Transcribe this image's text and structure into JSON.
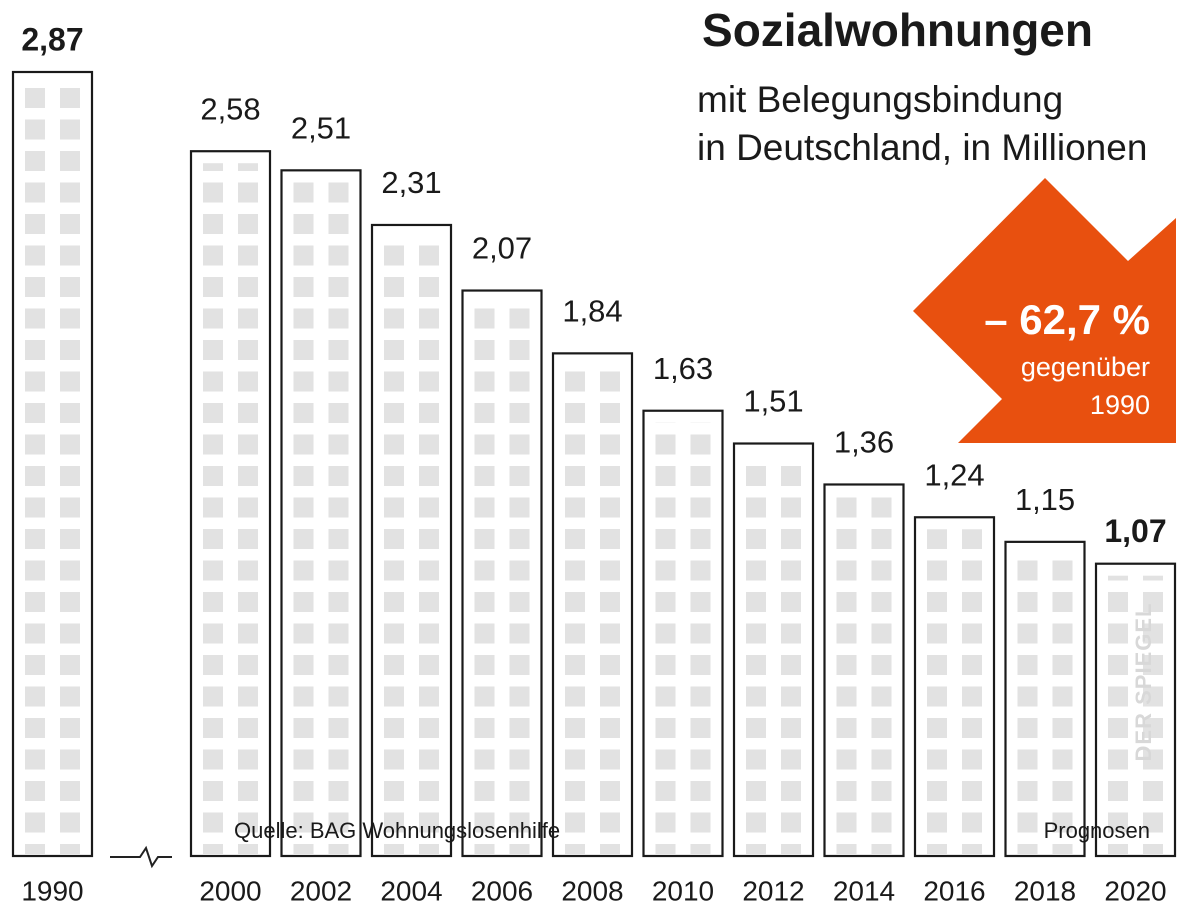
{
  "chart_data": {
    "type": "bar",
    "title": "Sozialwohnungen",
    "subtitle": [
      "mit Belegungsbindung",
      "in Deutschland, in Millionen"
    ],
    "categories": [
      "1990",
      "2000",
      "2002",
      "2004",
      "2006",
      "2008",
      "2010",
      "2012",
      "2014",
      "2016",
      "2018",
      "2020"
    ],
    "values": [
      2.87,
      2.58,
      2.51,
      2.31,
      2.07,
      1.84,
      1.63,
      1.51,
      1.36,
      1.24,
      1.15,
      1.07
    ],
    "value_labels": [
      "2,87",
      "2,58",
      "2,51",
      "2,31",
      "2,07",
      "1,84",
      "1,63",
      "1,51",
      "1,36",
      "1,24",
      "1,15",
      "1,07"
    ],
    "color": "#ffffff",
    "annotation": {
      "headline": "– 62,7 %",
      "lines": [
        "gegenüber",
        "1990"
      ],
      "color": "#e8500f"
    },
    "source": "Quelle: BAG Wohnungslosenhilfe",
    "note": "Prognosen",
    "watermark": "DER SPIEGEL"
  }
}
